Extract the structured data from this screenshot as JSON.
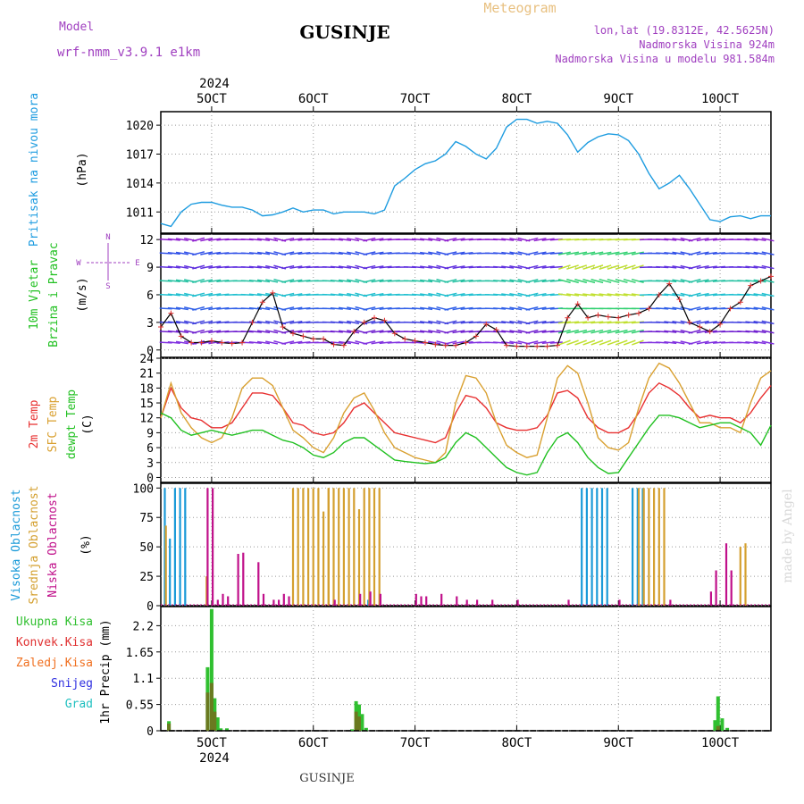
{
  "header": {
    "model_label": "Model",
    "model_name": "wrf-nmm_v3.9.1  e1km",
    "station": "GUSINJE",
    "meteogram": "Meteogram",
    "lonlat": "lon,lat (19.8312E, 42.5625N)",
    "elevation": "Nadmorska Visina 924m",
    "model_elevation": "Nadmorska Visina u modelu 981.584m"
  },
  "footer": {
    "station": "GUSINJE",
    "watermark": "made by Angel"
  },
  "colors": {
    "pressure": "#1e9ce0",
    "temp2m": "#e83030",
    "sfc": "#d9a030",
    "dew": "#20c020",
    "high": "#1a9ad8",
    "mid": "#d4a030",
    "low": "#c0108a",
    "total": "#30c030",
    "conv": "#e03030",
    "frozen": "#f07020",
    "snow": "#3030e0",
    "grad": "#20c0c0"
  },
  "time_axis": {
    "year": "2024",
    "ticks": [
      "5OCT",
      "6OCT",
      "7OCT",
      "8OCT",
      "9OCT",
      "10OCT"
    ],
    "day_positions": [
      5,
      6,
      7,
      8,
      9,
      10
    ],
    "range_days": [
      4.5,
      10.5
    ]
  },
  "chart_data": [
    {
      "type": "line",
      "ylabel": "Pritisak na nivou mora",
      "unit": "(hPa)",
      "yticks": [
        "1011",
        "1014",
        "1017",
        "1020"
      ],
      "ylim": [
        1008.8,
        1021.4
      ],
      "series": [
        {
          "name": "Pritisak na nivou mora",
          "x": [
            4.5,
            4.6,
            4.7,
            4.8,
            4.9,
            5.0,
            5.1,
            5.2,
            5.3,
            5.4,
            5.5,
            5.6,
            5.7,
            5.8,
            5.9,
            6.0,
            6.1,
            6.2,
            6.3,
            6.4,
            6.5,
            6.6,
            6.7,
            6.8,
            6.9,
            7.0,
            7.1,
            7.2,
            7.3,
            7.4,
            7.5,
            7.6,
            7.7,
            7.8,
            7.9,
            8.0,
            8.1,
            8.2,
            8.3,
            8.4,
            8.5,
            8.6,
            8.7,
            8.8,
            8.9,
            9.0,
            9.1,
            9.2,
            9.3,
            9.4,
            9.5,
            9.6,
            9.7,
            9.8,
            9.9,
            10.0,
            10.1,
            10.2,
            10.3,
            10.4,
            10.5
          ],
          "y": [
            1009.8,
            1009.5,
            1011.0,
            1011.8,
            1012.0,
            1012.0,
            1011.7,
            1011.5,
            1011.5,
            1011.2,
            1010.6,
            1010.7,
            1011.0,
            1011.4,
            1011.0,
            1011.2,
            1011.2,
            1010.8,
            1011.0,
            1011.0,
            1011.0,
            1010.8,
            1011.2,
            1013.7,
            1014.5,
            1015.4,
            1016.0,
            1016.3,
            1017.0,
            1018.3,
            1017.8,
            1017.0,
            1016.5,
            1017.6,
            1019.8,
            1020.6,
            1020.6,
            1020.2,
            1020.4,
            1020.2,
            1019.0,
            1017.2,
            1018.2,
            1018.8,
            1019.1,
            1019.0,
            1018.4,
            1017.0,
            1015.0,
            1013.4,
            1014.0,
            1014.8,
            1013.4,
            1011.8,
            1010.2,
            1010.0,
            1010.5,
            1010.6,
            1010.3,
            1010.6,
            1010.6
          ]
        }
      ]
    },
    {
      "type": "line",
      "ylabel": "10m Vjetar Brzina i Pravac",
      "unit": "(m/s)",
      "compass": {
        "n": "N",
        "s": "S",
        "e": "E",
        "w": "W"
      },
      "yticks": [
        "0",
        "3",
        "6",
        "9",
        "12"
      ],
      "ylim": [
        -0.8,
        12.6
      ],
      "series": [
        {
          "name": "10m Vjetar",
          "x": [
            4.5,
            4.6,
            4.7,
            4.8,
            4.9,
            5.0,
            5.1,
            5.2,
            5.3,
            5.4,
            5.5,
            5.6,
            5.7,
            5.8,
            5.9,
            6.0,
            6.1,
            6.2,
            6.3,
            6.4,
            6.5,
            6.6,
            6.7,
            6.8,
            6.9,
            7.0,
            7.1,
            7.2,
            7.3,
            7.4,
            7.5,
            7.6,
            7.7,
            7.8,
            7.9,
            8.0,
            8.1,
            8.2,
            8.3,
            8.4,
            8.5,
            8.6,
            8.7,
            8.8,
            8.9,
            9.0,
            9.1,
            9.2,
            9.3,
            9.4,
            9.5,
            9.6,
            9.7,
            9.8,
            9.9,
            10.0,
            10.1,
            10.2,
            10.3,
            10.4,
            10.5
          ],
          "y": [
            2.5,
            4.0,
            1.5,
            0.8,
            0.8,
            1.0,
            0.8,
            0.7,
            0.8,
            3.0,
            5.2,
            6.2,
            2.5,
            1.8,
            1.5,
            1.2,
            1.2,
            0.6,
            0.5,
            2.0,
            3.0,
            3.5,
            3.2,
            1.8,
            1.2,
            1.0,
            0.8,
            0.6,
            0.5,
            0.5,
            0.8,
            1.5,
            2.8,
            2.2,
            0.5,
            0.4,
            0.4,
            0.4,
            0.4,
            0.5,
            3.5,
            5.0,
            3.5,
            3.8,
            3.6,
            3.5,
            3.8,
            4.0,
            4.5,
            6.0,
            7.2,
            5.5,
            3.0,
            2.5,
            2.0,
            2.8,
            4.5,
            5.2,
            7.0,
            7.5,
            8.0
          ]
        }
      ]
    },
    {
      "type": "line",
      "ylabel": "2m Temp / SFC Temp / dewpt Temp",
      "unit": "(C)",
      "yticks": [
        "0",
        "3",
        "6",
        "9",
        "12",
        "15",
        "18",
        "21",
        "24"
      ],
      "ylim": [
        -1,
        24
      ],
      "series": [
        {
          "name": "2m Temp",
          "x": [
            4.5,
            4.6,
            4.7,
            4.8,
            4.9,
            5.0,
            5.1,
            5.2,
            5.3,
            5.4,
            5.5,
            5.6,
            5.7,
            5.8,
            5.9,
            6.0,
            6.1,
            6.2,
            6.3,
            6.4,
            6.5,
            6.6,
            6.7,
            6.8,
            6.9,
            7.0,
            7.1,
            7.2,
            7.3,
            7.4,
            7.5,
            7.6,
            7.7,
            7.8,
            7.9,
            8.0,
            8.1,
            8.2,
            8.3,
            8.4,
            8.5,
            8.6,
            8.7,
            8.8,
            8.9,
            9.0,
            9.1,
            9.2,
            9.3,
            9.4,
            9.5,
            9.6,
            9.7,
            9.8,
            9.9,
            10.0,
            10.1,
            10.2,
            10.3,
            10.4,
            10.5
          ],
          "y": [
            12,
            18,
            14,
            12,
            11.5,
            10,
            10,
            11,
            14,
            17,
            17,
            16.5,
            14,
            11,
            10.5,
            9,
            8.5,
            9,
            11,
            14,
            15,
            13,
            11,
            9,
            8.5,
            8,
            7.5,
            7,
            8,
            13,
            16.5,
            16,
            14,
            11,
            10,
            9.5,
            9.5,
            10,
            12.5,
            17,
            17.5,
            16,
            12,
            10,
            9,
            9,
            10,
            13,
            17,
            19,
            18,
            16.5,
            14,
            12,
            12.5,
            12,
            12,
            11,
            13,
            16,
            18.5
          ]
        },
        {
          "name": "SFC Temp",
          "x": [
            4.5,
            4.6,
            4.7,
            4.8,
            4.9,
            5.0,
            5.1,
            5.2,
            5.3,
            5.4,
            5.5,
            5.6,
            5.7,
            5.8,
            5.9,
            6.0,
            6.1,
            6.2,
            6.3,
            6.4,
            6.5,
            6.6,
            6.7,
            6.8,
            6.9,
            7.0,
            7.1,
            7.2,
            7.3,
            7.4,
            7.5,
            7.6,
            7.7,
            7.8,
            7.9,
            8.0,
            8.1,
            8.2,
            8.3,
            8.4,
            8.5,
            8.6,
            8.7,
            8.8,
            8.9,
            9.0,
            9.1,
            9.2,
            9.3,
            9.4,
            9.5,
            9.6,
            9.7,
            9.8,
            9.9,
            10.0,
            10.1,
            10.2,
            10.3,
            10.4,
            10.5
          ],
          "y": [
            12,
            19,
            13,
            10,
            8,
            7,
            8,
            12,
            18,
            20,
            20,
            18.5,
            14,
            9.5,
            8,
            6,
            5,
            8,
            13,
            16,
            17,
            13.5,
            9,
            6,
            5,
            4,
            3.5,
            3,
            5,
            15,
            20.5,
            20,
            17,
            11,
            6.5,
            5,
            4,
            4.5,
            12,
            20,
            22.5,
            21,
            15,
            8,
            6,
            5.5,
            7,
            14,
            20,
            23,
            22,
            19,
            15,
            11,
            11,
            10,
            10,
            9,
            15,
            20,
            21.5
          ]
        },
        {
          "name": "dewpt Temp",
          "x": [
            4.5,
            4.6,
            4.7,
            4.8,
            4.9,
            5.0,
            5.1,
            5.2,
            5.3,
            5.4,
            5.5,
            5.6,
            5.7,
            5.8,
            5.9,
            6.0,
            6.1,
            6.2,
            6.3,
            6.4,
            6.5,
            6.6,
            6.7,
            6.8,
            6.9,
            7.0,
            7.1,
            7.2,
            7.3,
            7.4,
            7.5,
            7.6,
            7.7,
            7.8,
            7.9,
            8.0,
            8.1,
            8.2,
            8.3,
            8.4,
            8.5,
            8.6,
            8.7,
            8.8,
            8.9,
            9.0,
            9.1,
            9.2,
            9.3,
            9.4,
            9.5,
            9.6,
            9.7,
            9.8,
            9.9,
            10.0,
            10.1,
            10.2,
            10.3,
            10.4,
            10.5
          ],
          "y": [
            13,
            12,
            9.5,
            8.5,
            9,
            9.5,
            9,
            8.5,
            9,
            9.5,
            9.5,
            8.5,
            7.5,
            7,
            6,
            4.5,
            4,
            5,
            7,
            8,
            8,
            6.5,
            5,
            3.5,
            3.2,
            3,
            2.8,
            3,
            4,
            7,
            9,
            8,
            6,
            4,
            2,
            1,
            0.5,
            1,
            5,
            8,
            9,
            7,
            4,
            2,
            0.8,
            1,
            4,
            7,
            10,
            12.5,
            12.5,
            12,
            11,
            10,
            10.5,
            11,
            11,
            10,
            9,
            6.5,
            10.5
          ]
        }
      ]
    },
    {
      "type": "bar",
      "ylabel": "Visoka / Srednja / Niska Oblacnost",
      "unit": "(%)",
      "yticks": [
        "0",
        "25",
        "50",
        "75",
        "100"
      ],
      "ylim": [
        0,
        104
      ],
      "series": [
        {
          "name": "Visoka Oblacnost",
          "x": [
            4.55,
            4.6,
            4.65,
            4.7,
            4.75,
            6.55,
            8.65,
            8.7,
            8.75,
            8.8,
            8.85,
            8.9,
            9.15,
            9.2,
            9.25
          ],
          "y": [
            100,
            57,
            100,
            100,
            100,
            5,
            100,
            100,
            100,
            100,
            100,
            100,
            100,
            100,
            100
          ]
        },
        {
          "name": "Srednja Oblacnost",
          "x": [
            4.55,
            4.95,
            5.8,
            5.85,
            5.9,
            5.95,
            6.0,
            6.05,
            6.1,
            6.15,
            6.15,
            6.2,
            6.25,
            6.3,
            6.35,
            6.4,
            6.45,
            6.5,
            6.55,
            6.6,
            6.65,
            9.2,
            9.25,
            9.3,
            9.35,
            9.4,
            9.45,
            10.2,
            10.25
          ],
          "y": [
            68,
            25,
            100,
            100,
            100,
            100,
            100,
            100,
            80,
            100,
            100,
            100,
            100,
            100,
            100,
            100,
            82,
            100,
            100,
            100,
            100,
            100,
            100,
            100,
            100,
            100,
            100,
            50,
            53
          ]
        },
        {
          "name": "Niska Oblacnost",
          "x": [
            4.95,
            5.0,
            5.05,
            5.1,
            5.15,
            5.25,
            5.3,
            5.45,
            5.5,
            5.6,
            5.65,
            5.7,
            5.75,
            6.2,
            6.45,
            6.55,
            6.65,
            7.0,
            7.05,
            7.1,
            7.25,
            7.4,
            7.5,
            7.6,
            7.75,
            8.0,
            8.5,
            9.0,
            9.5,
            9.9,
            9.95,
            10.05,
            10.1
          ],
          "y": [
            100,
            100,
            5,
            10,
            8,
            44,
            45,
            37,
            10,
            5,
            5,
            10,
            8,
            5,
            10,
            12,
            10,
            10,
            8,
            8,
            10,
            8,
            5,
            5,
            5,
            5,
            5,
            5,
            5,
            12,
            30,
            53,
            30
          ]
        }
      ]
    },
    {
      "type": "bar",
      "ylabel": "1hr Precip",
      "unit": "(mm)",
      "yticks": [
        "0",
        "0.55",
        "1.1",
        "1.65",
        "2.2"
      ],
      "ylim": [
        0,
        2.6
      ],
      "legend": [
        "Ukupna Kisa",
        "Konvek.Kisa",
        "Zaledj.Kisa",
        "Snijeg",
        "Grad"
      ],
      "series": [
        {
          "name": "Ukupna Kisa",
          "x": [
            4.58,
            4.96,
            5.0,
            5.03,
            5.06,
            5.09,
            5.15,
            6.38,
            6.42,
            6.45,
            6.48,
            6.52,
            9.95,
            9.98,
            10.02,
            10.07
          ],
          "y": [
            0.2,
            1.33,
            2.55,
            0.68,
            0.28,
            0.05,
            0.05,
            0.03,
            0.62,
            0.55,
            0.35,
            0.06,
            0.22,
            0.72,
            0.26,
            0.06
          ]
        },
        {
          "name": "Konvek.Kisa",
          "x": [
            4.58,
            4.96,
            5.0,
            5.03,
            6.42,
            6.45,
            9.98
          ],
          "y": [
            0.15,
            0.8,
            1.0,
            0.4,
            0.4,
            0.3,
            0.1
          ]
        }
      ]
    }
  ]
}
